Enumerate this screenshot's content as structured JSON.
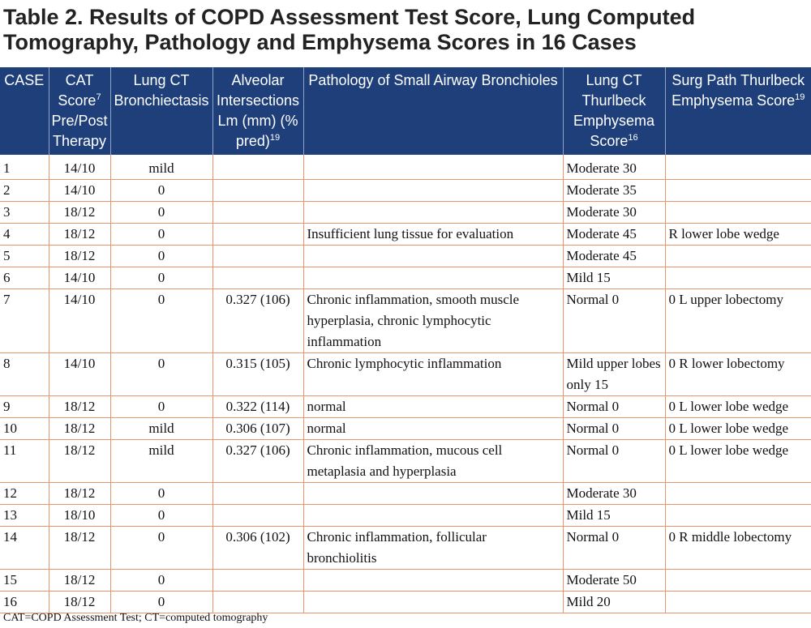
{
  "title": "Table 2. Results of COPD Assessment Test Score, Lung Computed Tomography, Pathology and Emphysema Scores in 16 Cases",
  "headers": [
    {
      "text": "CASE",
      "sup": ""
    },
    {
      "text": "CAT Score",
      "sup": "7",
      "after": " Pre/Post Therapy"
    },
    {
      "text": "Lung CT Bronchiectasis",
      "sup": ""
    },
    {
      "text": "Alveolar Intersections Lm (mm) (% pred)",
      "sup": "19"
    },
    {
      "text": "Pathology of Small Airway Bronchioles",
      "sup": ""
    },
    {
      "text": "Lung CT Thurlbeck Emphysema Score",
      "sup": "16"
    },
    {
      "text": "Surg Path Thurlbeck Emphysema Score",
      "sup": "19"
    }
  ],
  "rows": [
    [
      "1",
      "14/10",
      "mild",
      "",
      "",
      "Moderate 30",
      ""
    ],
    [
      "2",
      "14/10",
      "0",
      "",
      "",
      "Moderate 35",
      ""
    ],
    [
      "3",
      "18/12",
      "0",
      "",
      "",
      "Moderate 30",
      ""
    ],
    [
      "4",
      "18/12",
      "0",
      "",
      "Insufficient lung tissue for evaluation",
      "Moderate 45",
      "R lower lobe wedge"
    ],
    [
      "5",
      "18/12",
      "0",
      "",
      "",
      "Moderate 45",
      ""
    ],
    [
      "6",
      "14/10",
      "0",
      "",
      "",
      "Mild 15",
      ""
    ],
    [
      "7",
      "14/10",
      "0",
      "0.327 (106)",
      "Chronic inflammation, smooth muscle hyperplasia, chronic lymphocytic inflammation",
      "Normal 0",
      "0 L upper lobectomy"
    ],
    [
      "8",
      "14/10",
      "0",
      "0.315 (105)",
      "Chronic lymphocytic inflammation",
      "Mild upper lobes only 15",
      "0 R lower lobectomy"
    ],
    [
      "9",
      "18/12",
      "0",
      "0.322 (114)",
      "normal",
      "Normal 0",
      "0 L lower lobe wedge"
    ],
    [
      "10",
      "18/12",
      "mild",
      "0.306 (107)",
      "normal",
      "Normal 0",
      "0 L lower lobe wedge"
    ],
    [
      "11",
      "18/12",
      "mild",
      "0.327 (106)",
      "Chronic inflammation, mucous cell metaplasia and hyperplasia",
      "Normal 0",
      "0 L lower lobe wedge"
    ],
    [
      "12",
      "18/12",
      "0",
      "",
      "",
      "Moderate 30",
      ""
    ],
    [
      "13",
      "18/10",
      "0",
      "",
      "",
      "Mild 15",
      ""
    ],
    [
      "14",
      "18/12",
      "0",
      "0.306 (102)",
      "Chronic inflammation, follicular bronchiolitis",
      "Normal 0",
      "0 R middle lobectomy"
    ],
    [
      "15",
      "18/12",
      "0",
      "",
      "",
      "Moderate 50",
      ""
    ],
    [
      "16",
      "18/12",
      "0",
      "",
      "",
      "Mild 20",
      ""
    ]
  ],
  "footnote": "CAT=COPD Assessment Test; CT=computed tomography"
}
